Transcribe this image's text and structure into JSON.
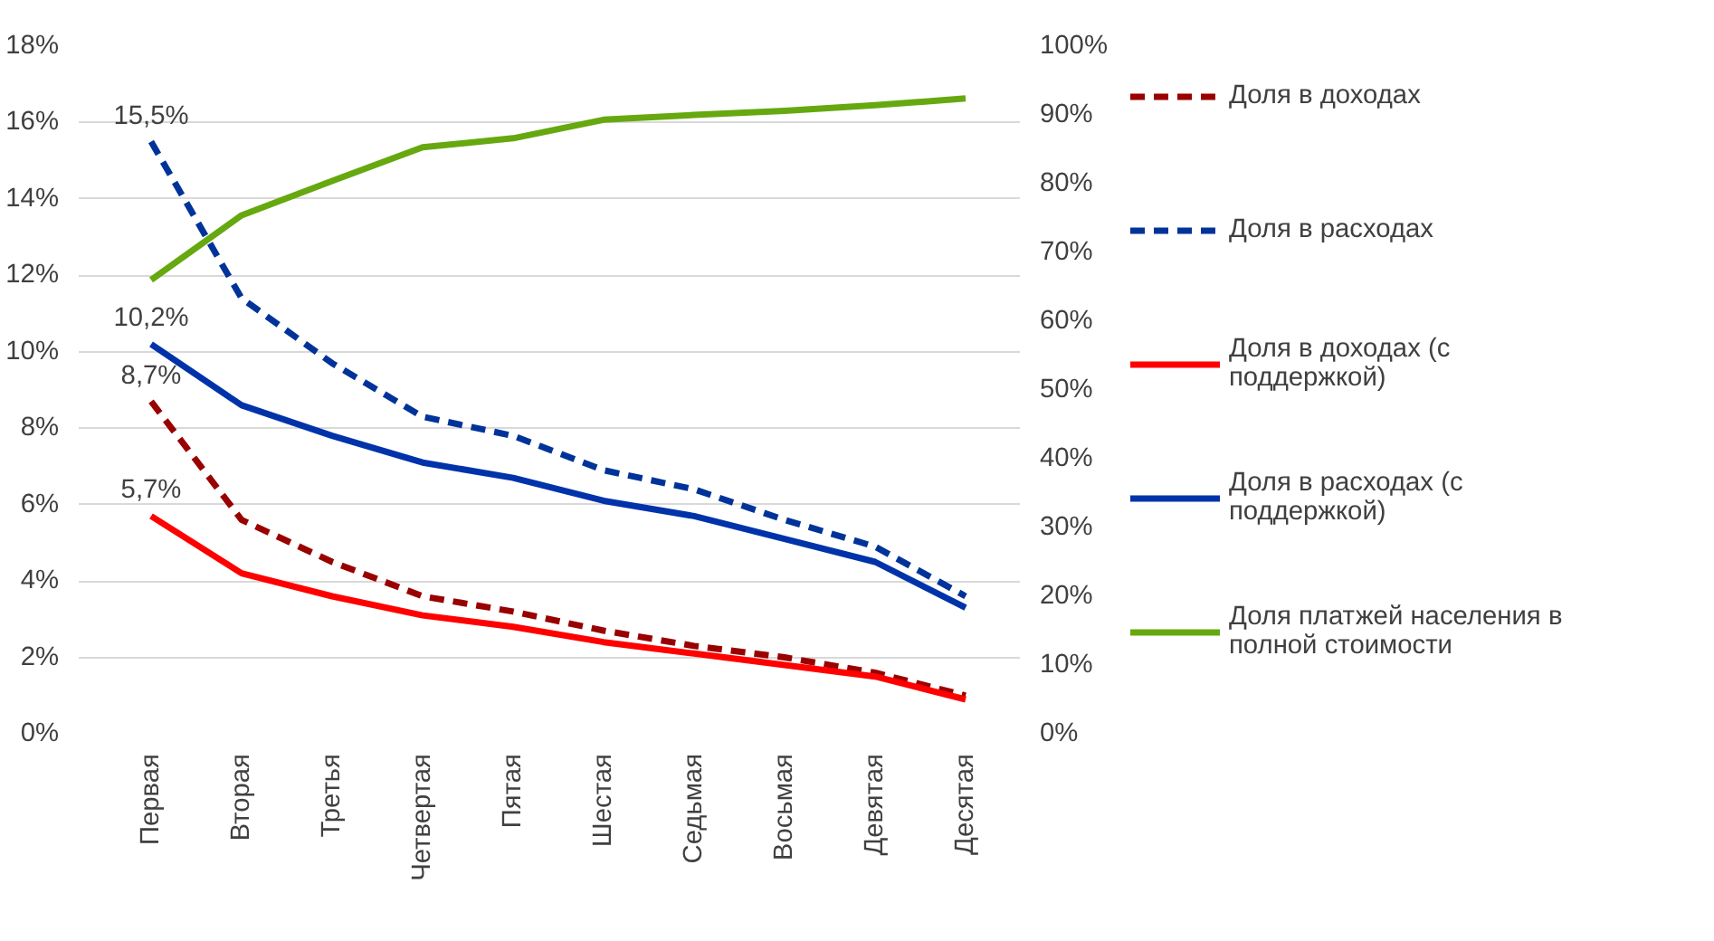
{
  "chart_data": {
    "type": "line",
    "categories": [
      "Первая",
      "Вторая",
      "Третья",
      "Четвертая",
      "Пятая",
      "Шестая",
      "Седьмая",
      "Восьмая",
      "Девятая",
      "Десятая"
    ],
    "series": [
      {
        "name": "Доля в доходах",
        "color": "#990000",
        "line_style": "dashed",
        "values": [
          8.7,
          5.6,
          4.5,
          3.6,
          3.2,
          2.7,
          2.3,
          2.0,
          1.6,
          1.0
        ],
        "value_labels": [
          "8,7%",
          null,
          null,
          null,
          null,
          null,
          null,
          null,
          null,
          null
        ]
      },
      {
        "name": "Доля в расходах",
        "color": "#003399",
        "line_style": "dashed",
        "values": [
          15.5,
          11.4,
          9.7,
          8.3,
          7.8,
          6.9,
          6.4,
          5.6,
          4.9,
          3.6
        ],
        "value_labels": [
          "15,5%",
          null,
          null,
          null,
          null,
          null,
          null,
          null,
          null,
          null
        ]
      },
      {
        "name": "Доля в доходах (с поддержкой)",
        "color": "#ff0000",
        "line_style": "solid",
        "values": [
          5.7,
          4.2,
          3.6,
          3.1,
          2.8,
          2.4,
          2.1,
          1.8,
          1.5,
          0.9
        ],
        "value_labels": [
          "5,7%",
          null,
          null,
          null,
          null,
          null,
          null,
          null,
          null,
          null
        ]
      },
      {
        "name": "Доля в расходах (с поддержкой)",
        "color": "#0033aa",
        "line_style": "solid",
        "values": [
          10.2,
          8.6,
          7.8,
          7.1,
          6.7,
          6.1,
          5.7,
          5.1,
          4.5,
          3.3
        ],
        "value_labels": [
          "10,2%",
          null,
          null,
          null,
          null,
          null,
          null,
          null,
          null,
          null
        ]
      },
      {
        "name": "Доля платжей населения в полной стоимости",
        "color": "#66a80f",
        "line_style": "solid",
        "axis": "y2",
        "values": [
          66,
          75.4,
          80.4,
          85.3,
          86.6,
          89.3,
          90,
          90.6,
          91.4,
          92.4
        ]
      }
    ],
    "ylim": [
      0,
      18
    ],
    "yticks": [
      {
        "value": 0,
        "label": "0%"
      },
      {
        "value": 2,
        "label": "2%"
      },
      {
        "value": 4,
        "label": "4%"
      },
      {
        "value": 6,
        "label": "6%"
      },
      {
        "value": 8,
        "label": "8%"
      },
      {
        "value": 10,
        "label": "10%"
      },
      {
        "value": 12,
        "label": "12%"
      },
      {
        "value": 14,
        "label": "14%"
      },
      {
        "value": 16,
        "label": "16%"
      },
      {
        "value": 18,
        "label": "18%"
      }
    ],
    "y2lim": [
      0,
      100
    ],
    "y2ticks": [
      {
        "value": 0,
        "label": "0%"
      },
      {
        "value": 10,
        "label": "10%"
      },
      {
        "value": 20,
        "label": "20%"
      },
      {
        "value": 30,
        "label": "30%"
      },
      {
        "value": 40,
        "label": "40%"
      },
      {
        "value": 50,
        "label": "50%"
      },
      {
        "value": 60,
        "label": "60%"
      },
      {
        "value": 70,
        "label": "70%"
      },
      {
        "value": 80,
        "label": "80%"
      },
      {
        "value": 90,
        "label": "90%"
      },
      {
        "value": 100,
        "label": "100%"
      }
    ],
    "grid": "y",
    "legend": "right",
    "marker": "none"
  }
}
